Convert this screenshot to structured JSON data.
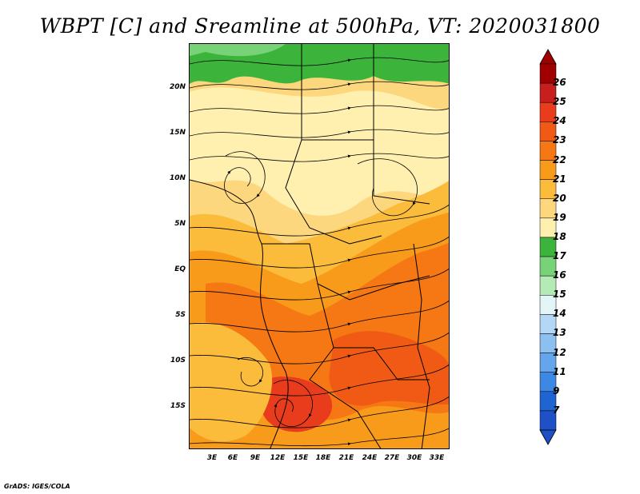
{
  "title": "WBPT [C] and Sreamline at 500hPa, VT: 2020031800",
  "footer": "GrADS: IGES/COLA",
  "lat_labels": [
    "20N",
    "15N",
    "10N",
    "5N",
    "EQ",
    "5S",
    "10S",
    "15S"
  ],
  "lon_labels": [
    "3E",
    "6E",
    "9E",
    "12E",
    "15E",
    "18E",
    "21E",
    "24E",
    "27E",
    "30E",
    "33E"
  ],
  "colorbar": {
    "labels": [
      "26",
      "25",
      "24",
      "23",
      "22",
      "21",
      "20",
      "19",
      "18",
      "17",
      "16",
      "15",
      "14",
      "13",
      "12",
      "11",
      "9",
      "7"
    ],
    "colors": [
      "#a00000",
      "#c81e1e",
      "#e83c1c",
      "#f05a14",
      "#f57814",
      "#f99b1a",
      "#fbbc3c",
      "#fdd77e",
      "#fff0b0",
      "#3cb43c",
      "#78d278",
      "#b4eab4",
      "#e4f5f8",
      "#b4d7f5",
      "#8cc0f0",
      "#64a5ec",
      "#3c88e4",
      "#1e64d2",
      "#1e50c8"
    ]
  },
  "map": {
    "field": "WBPT",
    "units": "C",
    "level": "500hPa",
    "valid_time": "2020031800",
    "colors": {
      "green": "#3cb43c",
      "light_green": "#78d278",
      "pale_yellow": "#fff0b0",
      "light_orange": "#fdd77e",
      "orange_light": "#fbbc3c",
      "orange": "#f99b1a",
      "orange_dark": "#f57814",
      "red_orange": "#f05a14",
      "red": "#e83c1c"
    }
  }
}
